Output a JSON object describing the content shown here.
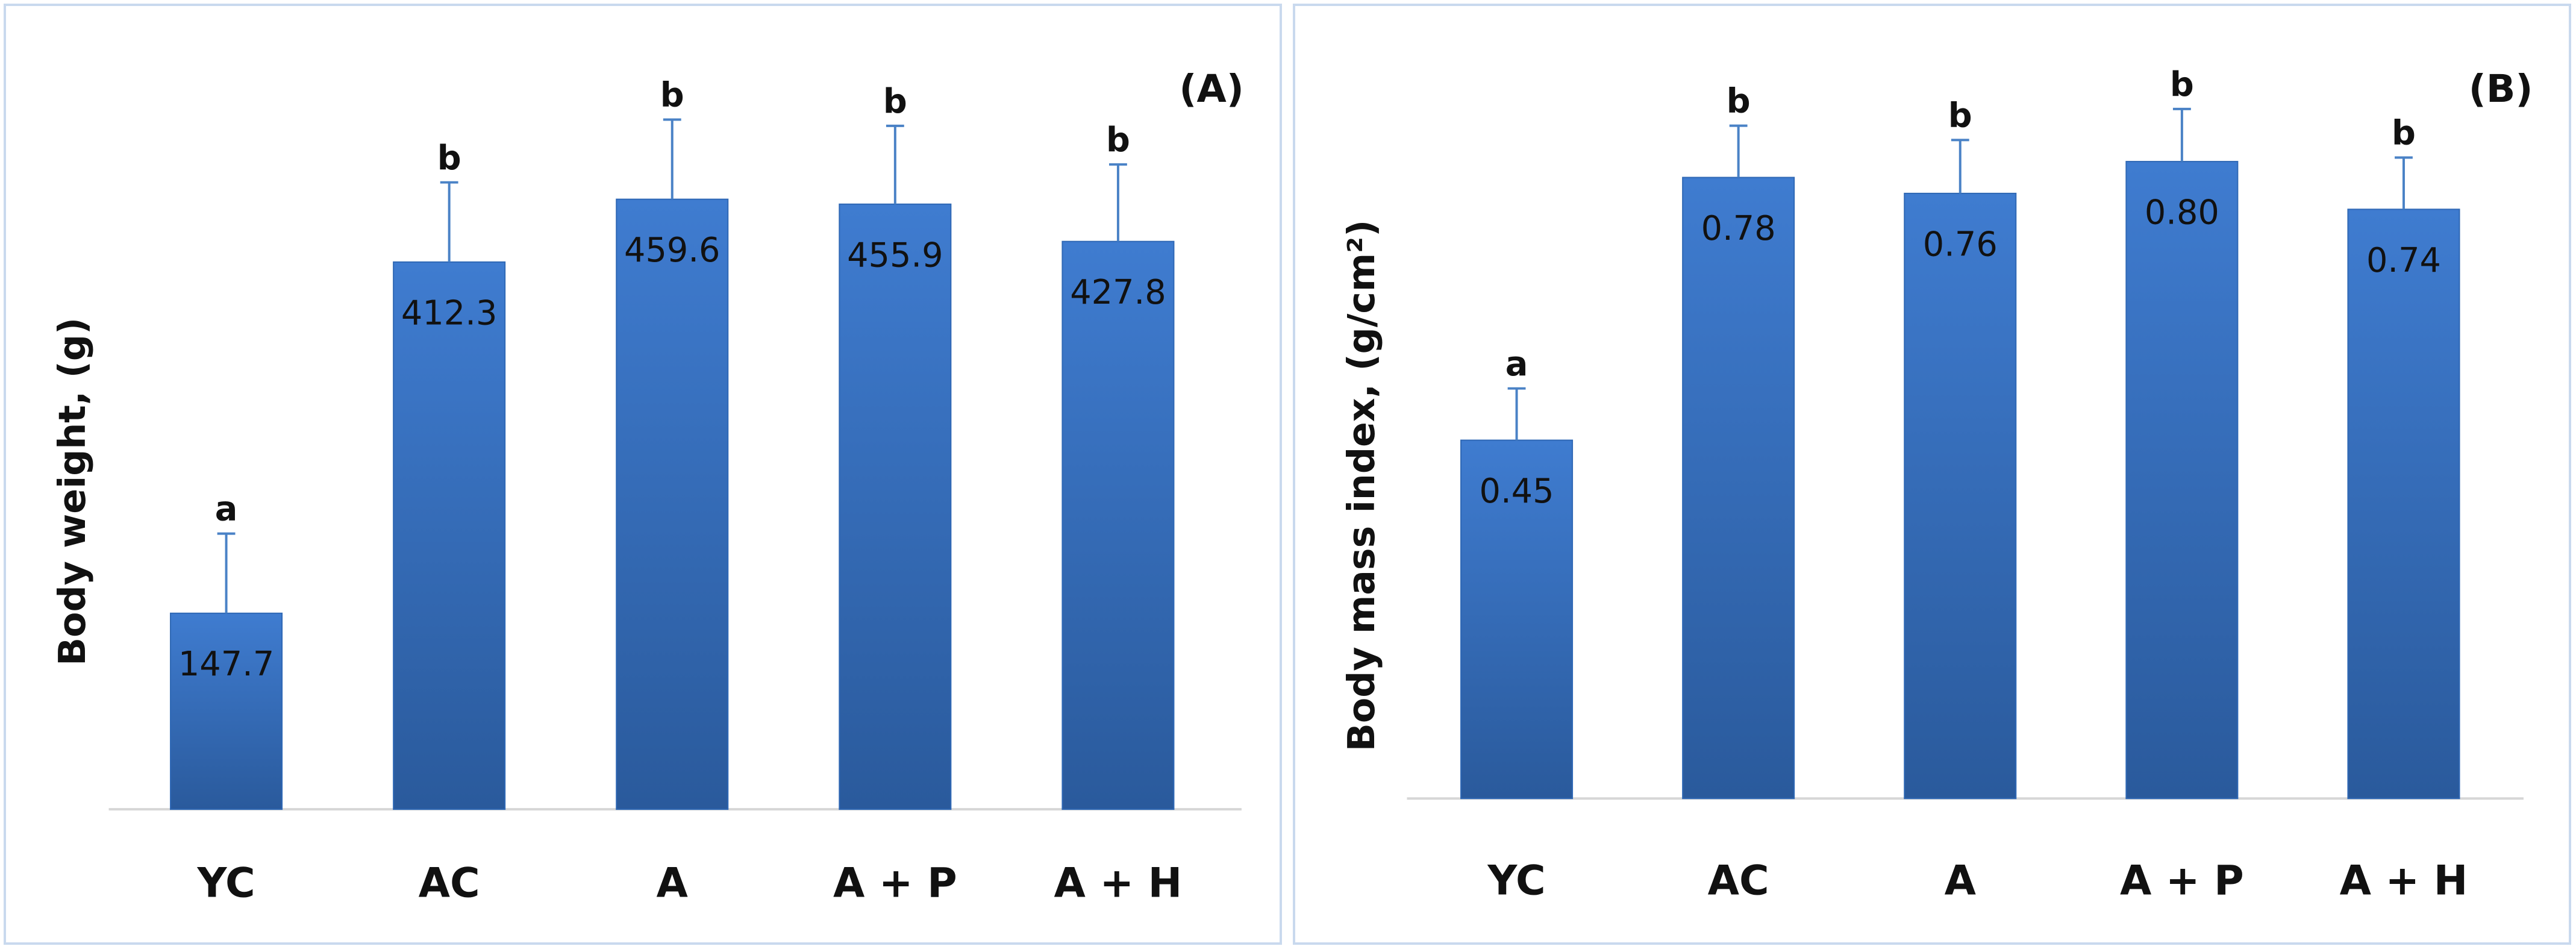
{
  "colors": {
    "bar_top": "#3f7cd0",
    "bar_bottom": "#2a5a9c",
    "error_bar": "#4a82c6",
    "baseline": "#d6d6d6",
    "text": "#111111"
  },
  "chart_data": [
    {
      "type": "bar",
      "panel_label": "(A)",
      "ylabel": "Body weight, (g)",
      "categories": [
        "YC",
        "AC",
        "A",
        "A + P",
        "A + H"
      ],
      "values": [
        147.7,
        412.3,
        459.6,
        455.9,
        427.8
      ],
      "value_labels": [
        "147.7",
        "412.3",
        "459.6",
        "455.9",
        "427.8"
      ],
      "errors": [
        60,
        60,
        60,
        59,
        58
      ],
      "significance": [
        "a",
        "b",
        "b",
        "b",
        "b"
      ],
      "ylim": [
        0,
        560
      ],
      "grid": false,
      "legend": "none"
    },
    {
      "type": "bar",
      "panel_label": "(B)",
      "ylabel": "Body mass index,  (g/cm²)",
      "categories": [
        "YC",
        "AC",
        "A",
        "A + P",
        "A + H"
      ],
      "values": [
        0.45,
        0.78,
        0.76,
        0.8,
        0.74
      ],
      "value_labels": [
        "0.45",
        "0.78",
        "0.76",
        "0.80",
        "0.74"
      ],
      "errors": [
        0.065,
        0.065,
        0.067,
        0.066,
        0.065
      ],
      "significance": [
        "a",
        "b",
        "b",
        "b",
        "b"
      ],
      "ylim": [
        0,
        0.92
      ],
      "grid": false,
      "legend": "none"
    }
  ]
}
